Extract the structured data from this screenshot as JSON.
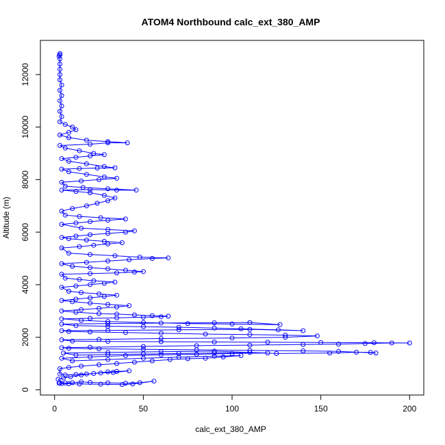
{
  "chart_data": {
    "type": "scatter",
    "title": "ATOM4 Northbound calc_ext_380_AMP",
    "xlabel": "calc_ext_380_AMP",
    "ylabel": "Altitude (m)",
    "xlim": [
      -8,
      208
    ],
    "ylim": [
      -200,
      13300
    ],
    "x_ticks": [
      0,
      50,
      100,
      150,
      200
    ],
    "y_ticks": [
      0,
      2000,
      4000,
      6000,
      8000,
      10000,
      12000
    ],
    "x_tick_labels": [
      "0",
      "50",
      "100",
      "150",
      "200"
    ],
    "y_tick_labels": [
      "0",
      "2000",
      "4000",
      "6000",
      "8000",
      "10000",
      "12000"
    ],
    "grid": false,
    "legend": "none",
    "marker": "open-circle",
    "connected": true,
    "color": "#0000ff",
    "series": [
      {
        "points": [
          [
            2.5,
            250
          ],
          [
            3,
            260
          ],
          [
            6,
            255
          ],
          [
            10,
            270
          ],
          [
            15,
            300
          ],
          [
            20,
            280
          ],
          [
            30,
            260
          ],
          [
            40,
            250
          ],
          [
            48,
            270
          ],
          [
            56,
            330
          ],
          [
            44,
            220
          ],
          [
            38,
            200
          ],
          [
            26,
            210
          ],
          [
            14,
            220
          ],
          [
            8,
            230
          ],
          [
            4,
            240
          ],
          [
            2,
            400
          ],
          [
            5,
            450
          ],
          [
            9,
            500
          ],
          [
            15,
            560
          ],
          [
            22,
            620
          ],
          [
            30,
            680
          ],
          [
            35,
            700
          ],
          [
            42,
            720
          ],
          [
            33,
            660
          ],
          [
            26,
            640
          ],
          [
            18,
            600
          ],
          [
            12,
            580
          ],
          [
            6,
            560
          ],
          [
            3,
            600
          ],
          [
            3,
            800
          ],
          [
            8,
            850
          ],
          [
            15,
            900
          ],
          [
            25,
            950
          ],
          [
            35,
            1000
          ],
          [
            45,
            1050
          ],
          [
            55,
            1100
          ],
          [
            65,
            1150
          ],
          [
            75,
            1180
          ],
          [
            85,
            1200
          ],
          [
            95,
            1250
          ],
          [
            105,
            1300
          ],
          [
            90,
            1280
          ],
          [
            70,
            1240
          ],
          [
            50,
            1200
          ],
          [
            30,
            1150
          ],
          [
            10,
            1100
          ],
          [
            4,
            1200
          ],
          [
            20,
            1250
          ],
          [
            40,
            1300
          ],
          [
            60,
            1330
          ],
          [
            80,
            1350
          ],
          [
            100,
            1380
          ],
          [
            120,
            1400
          ],
          [
            110,
            1420
          ],
          [
            90,
            1400
          ],
          [
            70,
            1380
          ],
          [
            50,
            1360
          ],
          [
            30,
            1340
          ],
          [
            12,
            1320
          ],
          [
            5,
            1400
          ],
          [
            30,
            1420
          ],
          [
            60,
            1450
          ],
          [
            90,
            1470
          ],
          [
            125,
            1380
          ],
          [
            155,
            1400
          ],
          [
            170,
            1430
          ],
          [
            178,
            1420
          ],
          [
            181,
            1400
          ],
          [
            160,
            1460
          ],
          [
            140,
            1480
          ],
          [
            110,
            1500
          ],
          [
            80,
            1520
          ],
          [
            50,
            1540
          ],
          [
            25,
            1560
          ],
          [
            8,
            1580
          ],
          [
            4,
            1600
          ],
          [
            20,
            1620
          ],
          [
            50,
            1650
          ],
          [
            80,
            1680
          ],
          [
            110,
            1700
          ],
          [
            140,
            1720
          ],
          [
            160,
            1740
          ],
          [
            175,
            1760
          ],
          [
            190,
            1780
          ],
          [
            200,
            1780
          ],
          [
            180,
            1790
          ],
          [
            150,
            1800
          ],
          [
            120,
            1810
          ],
          [
            90,
            1820
          ],
          [
            60,
            1830
          ],
          [
            30,
            1840
          ],
          [
            10,
            1850
          ],
          [
            4,
            1900
          ],
          [
            25,
            1920
          ],
          [
            60,
            1950
          ],
          [
            100,
            1970
          ],
          [
            130,
            2000
          ],
          [
            148,
            2050
          ],
          [
            130,
            2080
          ],
          [
            110,
            2100
          ],
          [
            85,
            2120
          ],
          [
            60,
            2150
          ],
          [
            40,
            2180
          ],
          [
            20,
            2200
          ],
          [
            8,
            2220
          ],
          [
            4,
            2250
          ],
          [
            30,
            2260
          ],
          [
            70,
            2280
          ],
          [
            110,
            2300
          ],
          [
            140,
            2250
          ],
          [
            126,
            2280
          ],
          [
            105,
            2320
          ],
          [
            90,
            2350
          ],
          [
            70,
            2380
          ],
          [
            50,
            2400
          ],
          [
            30,
            2420
          ],
          [
            12,
            2440
          ],
          [
            4,
            2500
          ],
          [
            30,
            2520
          ],
          [
            60,
            2540
          ],
          [
            90,
            2550
          ],
          [
            110,
            2560
          ],
          [
            127,
            2480
          ],
          [
            100,
            2500
          ],
          [
            75,
            2520
          ],
          [
            50,
            2560
          ],
          [
            30,
            2600
          ],
          [
            15,
            2640
          ],
          [
            4,
            2700
          ],
          [
            20,
            2720
          ],
          [
            35,
            2740
          ],
          [
            50,
            2760
          ],
          [
            60,
            2780
          ],
          [
            64,
            2800
          ],
          [
            55,
            2820
          ],
          [
            45,
            2850
          ],
          [
            35,
            2880
          ],
          [
            25,
            2900
          ],
          [
            12,
            2950
          ],
          [
            4,
            3000
          ],
          [
            15,
            3050
          ],
          [
            25,
            3100
          ],
          [
            35,
            3150
          ],
          [
            42,
            3200
          ],
          [
            30,
            3250
          ],
          [
            20,
            3300
          ],
          [
            10,
            3350
          ],
          [
            4,
            3400
          ],
          [
            12,
            3450
          ],
          [
            20,
            3500
          ],
          [
            28,
            3550
          ],
          [
            35,
            3600
          ],
          [
            25,
            3650
          ],
          [
            15,
            3700
          ],
          [
            8,
            3750
          ],
          [
            4,
            3900
          ],
          [
            12,
            3950
          ],
          [
            20,
            4000
          ],
          [
            28,
            4050
          ],
          [
            34,
            4100
          ],
          [
            22,
            4150
          ],
          [
            14,
            4200
          ],
          [
            6,
            4250
          ],
          [
            4,
            4400
          ],
          [
            20,
            4420
          ],
          [
            35,
            4450
          ],
          [
            45,
            4480
          ],
          [
            50,
            4500
          ],
          [
            40,
            4550
          ],
          [
            30,
            4600
          ],
          [
            20,
            4650
          ],
          [
            10,
            4700
          ],
          [
            4,
            4800
          ],
          [
            18,
            4850
          ],
          [
            30,
            4900
          ],
          [
            42,
            4950
          ],
          [
            55,
            5000
          ],
          [
            64,
            5020
          ],
          [
            48,
            5050
          ],
          [
            34,
            5100
          ],
          [
            20,
            5150
          ],
          [
            8,
            5200
          ],
          [
            4,
            5400
          ],
          [
            14,
            5450
          ],
          [
            22,
            5500
          ],
          [
            30,
            5550
          ],
          [
            38,
            5600
          ],
          [
            28,
            5650
          ],
          [
            18,
            5700
          ],
          [
            8,
            5750
          ],
          [
            4,
            5800
          ],
          [
            12,
            5850
          ],
          [
            20,
            5900
          ],
          [
            30,
            5950
          ],
          [
            40,
            6000
          ],
          [
            45,
            6050
          ],
          [
            30,
            6100
          ],
          [
            15,
            6150
          ],
          [
            4,
            6300
          ],
          [
            12,
            6350
          ],
          [
            20,
            6400
          ],
          [
            30,
            6450
          ],
          [
            40,
            6500
          ],
          [
            26,
            6550
          ],
          [
            14,
            6600
          ],
          [
            6,
            6650
          ],
          [
            4,
            6800
          ],
          [
            10,
            6900
          ],
          [
            18,
            7000
          ],
          [
            24,
            7100
          ],
          [
            30,
            7200
          ],
          [
            34,
            7300
          ],
          [
            28,
            7400
          ],
          [
            20,
            7500
          ],
          [
            12,
            7550
          ],
          [
            4,
            7600
          ],
          [
            20,
            7620
          ],
          [
            35,
            7600
          ],
          [
            46,
            7600
          ],
          [
            30,
            7650
          ],
          [
            16,
            7700
          ],
          [
            6,
            7750
          ],
          [
            4,
            7900
          ],
          [
            15,
            7950
          ],
          [
            25,
            8000
          ],
          [
            35,
            8050
          ],
          [
            28,
            8100
          ],
          [
            18,
            8200
          ],
          [
            8,
            8300
          ],
          [
            4,
            8400
          ],
          [
            14,
            8420
          ],
          [
            24,
            8440
          ],
          [
            34,
            8450
          ],
          [
            28,
            8500
          ],
          [
            18,
            8600
          ],
          [
            8,
            8700
          ],
          [
            4,
            8800
          ],
          [
            12,
            8850
          ],
          [
            20,
            8900
          ],
          [
            28,
            8950
          ],
          [
            22,
            9000
          ],
          [
            14,
            9100
          ],
          [
            6,
            9200
          ],
          [
            3,
            9300
          ],
          [
            20,
            9350
          ],
          [
            30,
            9400
          ],
          [
            41,
            9400
          ],
          [
            30,
            9450
          ],
          [
            18,
            9500
          ],
          [
            8,
            9600
          ],
          [
            3,
            9700
          ],
          [
            8,
            9800
          ],
          [
            12,
            9900
          ],
          [
            10,
            10000
          ],
          [
            6,
            10100
          ],
          [
            3,
            10200
          ],
          [
            4,
            10400
          ],
          [
            3,
            10600
          ],
          [
            4,
            10800
          ],
          [
            3,
            11000
          ],
          [
            4,
            11200
          ],
          [
            3,
            11400
          ],
          [
            4,
            11600
          ],
          [
            3,
            11800
          ],
          [
            3,
            12000
          ],
          [
            3,
            12200
          ],
          [
            3,
            12400
          ],
          [
            3,
            12600
          ],
          [
            3,
            12800
          ],
          [
            3,
            12750
          ],
          [
            2.5,
            12700
          ]
        ]
      }
    ]
  }
}
